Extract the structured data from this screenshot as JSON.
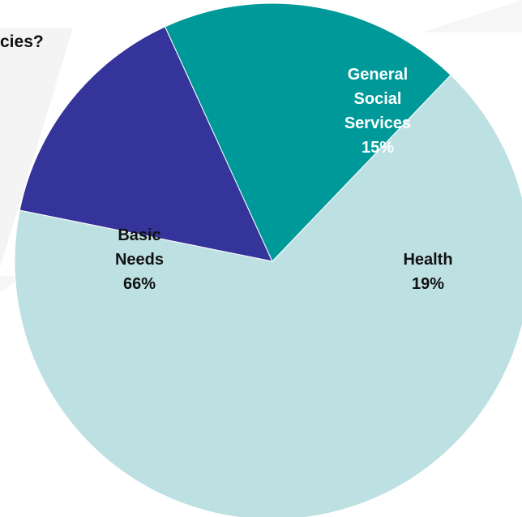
{
  "title": "cies?",
  "chart_data": {
    "type": "pie",
    "title": "cies?",
    "slices": [
      {
        "label_lines": [
          "General",
          "Social",
          "Services"
        ],
        "value_label": "15%",
        "value": 15,
        "color": "#34349a",
        "text_color": "#ffffff"
      },
      {
        "label_lines": [
          "Health"
        ],
        "value_label": "19%",
        "value": 19,
        "color": "#009999",
        "text_color": "#111111"
      },
      {
        "label_lines": [
          "Basic",
          "Needs"
        ],
        "value_label": "66%",
        "value": 66,
        "color": "#bde0e3",
        "text_color": "#111111"
      }
    ]
  }
}
